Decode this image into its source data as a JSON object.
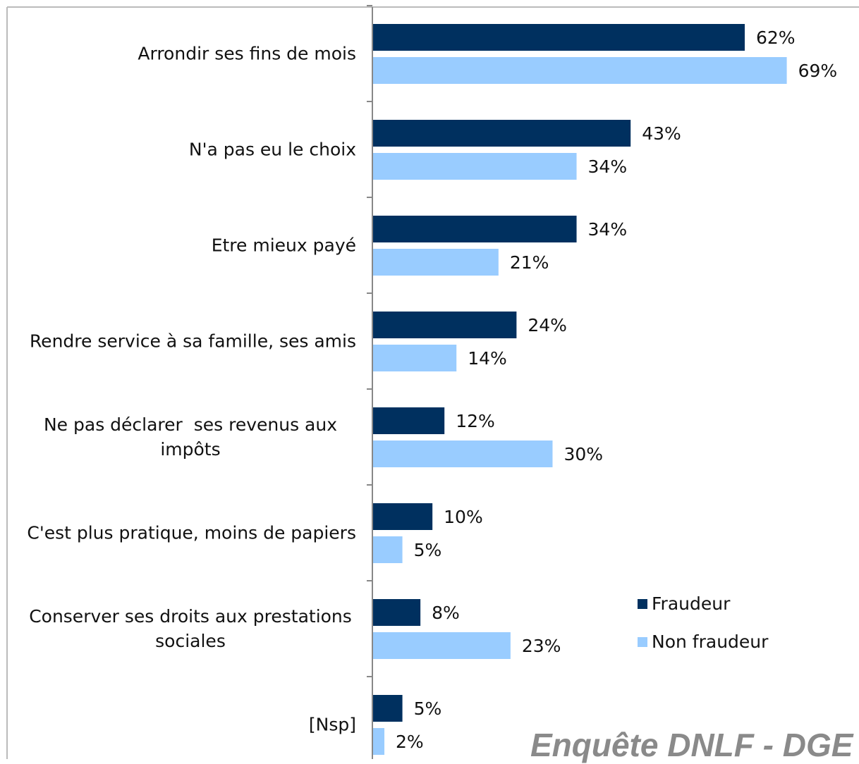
{
  "chart_data": {
    "type": "hbar",
    "categories": [
      "Arrondir ses fins de mois",
      "N'a pas eu le choix",
      "Etre mieux payé",
      "Rendre service à sa famille, ses amis",
      "Ne pas déclarer  ses revenus aux impôts",
      "C'est plus pratique, moins de papiers",
      "Conserver ses droits aux prestations sociales",
      "[Nsp]"
    ],
    "series": [
      {
        "name": "Fraudeur",
        "color": "#00305f",
        "values": [
          62,
          43,
          34,
          24,
          12,
          10,
          8,
          5
        ],
        "value_labels": [
          "62%",
          "43%",
          "34%",
          "24%",
          "12%",
          "10%",
          "8%",
          "5%"
        ]
      },
      {
        "name": "Non fraudeur",
        "color": "#99ccff",
        "values": [
          69,
          34,
          21,
          14,
          30,
          5,
          23,
          2
        ],
        "value_labels": [
          "69%",
          "34%",
          "21%",
          "14%",
          "30%",
          "5%",
          "23%",
          "2%"
        ]
      }
    ],
    "annotation": "Enquête DNLF - DGE"
  }
}
